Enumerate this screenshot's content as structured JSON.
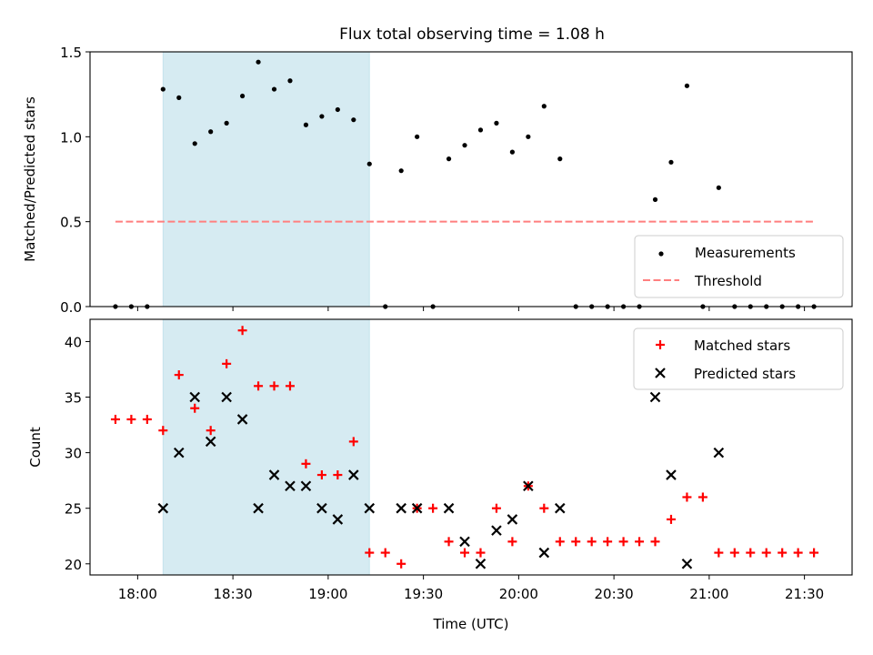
{
  "figure": {
    "title": "Flux total observing time = 1.08 h"
  },
  "chart_data": [
    {
      "type": "scatter",
      "ylabel": "Matched/Predicted stars",
      "xlabel": "",
      "x_unit": "minutes since 00:00 UTC",
      "xlim": [
        1065,
        1305
      ],
      "ylim": [
        0,
        1.5
      ],
      "yticks": [
        0,
        0.5,
        1.0,
        1.5
      ],
      "ytick_labels": [
        "0.0",
        "0.5",
        "1.0",
        "1.5"
      ],
      "shaded_region": {
        "x0": 1088,
        "x1": 1153,
        "color": "#add8e6"
      },
      "legend": {
        "position": "lower-right",
        "entries": [
          "Measurements",
          "Threshold"
        ]
      },
      "series": [
        {
          "name": "Measurements",
          "color": "#000000",
          "marker": "dot",
          "points": [
            [
              1073,
              0
            ],
            [
              1078,
              0
            ],
            [
              1083,
              0
            ],
            [
              1088,
              1.28
            ],
            [
              1093,
              1.23
            ],
            [
              1098,
              0.96
            ],
            [
              1103,
              1.03
            ],
            [
              1108,
              1.08
            ],
            [
              1113,
              1.24
            ],
            [
              1118,
              1.44
            ],
            [
              1123,
              1.28
            ],
            [
              1128,
              1.33
            ],
            [
              1133,
              1.07
            ],
            [
              1138,
              1.12
            ],
            [
              1143,
              1.16
            ],
            [
              1148,
              1.1
            ],
            [
              1153,
              0.84
            ],
            [
              1158,
              0.0
            ],
            [
              1163,
              0.8
            ],
            [
              1168,
              1.0
            ],
            [
              1173,
              0.0
            ],
            [
              1178,
              0.87
            ],
            [
              1183,
              0.95
            ],
            [
              1188,
              1.04
            ],
            [
              1193,
              1.08
            ],
            [
              1198,
              0.91
            ],
            [
              1203,
              1.0
            ],
            [
              1208,
              1.18
            ],
            [
              1213,
              0.87
            ],
            [
              1218,
              0
            ],
            [
              1223,
              0
            ],
            [
              1228,
              0
            ],
            [
              1233,
              0
            ],
            [
              1238,
              0
            ],
            [
              1243,
              0.63
            ],
            [
              1248,
              0.85
            ],
            [
              1253,
              1.3
            ],
            [
              1258,
              0
            ],
            [
              1263,
              0.7
            ],
            [
              1268,
              0
            ],
            [
              1273,
              0
            ],
            [
              1278,
              0
            ],
            [
              1283,
              0
            ],
            [
              1288,
              0
            ],
            [
              1293,
              0
            ]
          ]
        },
        {
          "name": "Threshold",
          "color": "#ff7f7f",
          "style": "dashed",
          "points": [
            [
              1073,
              0.5
            ],
            [
              1293,
              0.5
            ]
          ]
        }
      ]
    },
    {
      "type": "scatter",
      "ylabel": "Count",
      "xlabel": "Time (UTC)",
      "x_unit": "minutes since 00:00 UTC",
      "xlim": [
        1065,
        1305
      ],
      "ylim": [
        19,
        42
      ],
      "yticks": [
        20,
        25,
        30,
        35,
        40
      ],
      "ytick_labels": [
        "20",
        "25",
        "30",
        "35",
        "40"
      ],
      "xticks": [
        1080,
        1110,
        1140,
        1170,
        1200,
        1230,
        1260,
        1290
      ],
      "xtick_labels": [
        "18:00",
        "18:30",
        "19:00",
        "19:30",
        "20:00",
        "20:30",
        "21:00",
        "21:30"
      ],
      "shaded_region": {
        "x0": 1088,
        "x1": 1153,
        "color": "#add8e6"
      },
      "legend": {
        "position": "top-right",
        "entries": [
          "Matched stars",
          "Predicted stars"
        ]
      },
      "series": [
        {
          "name": "Matched stars",
          "color": "#ff0000",
          "marker": "plus",
          "points": [
            [
              1073,
              33
            ],
            [
              1078,
              33
            ],
            [
              1083,
              33
            ],
            [
              1088,
              32
            ],
            [
              1093,
              37
            ],
            [
              1098,
              34
            ],
            [
              1103,
              32
            ],
            [
              1108,
              38
            ],
            [
              1113,
              41
            ],
            [
              1118,
              36
            ],
            [
              1123,
              36
            ],
            [
              1128,
              36
            ],
            [
              1133,
              29
            ],
            [
              1138,
              28
            ],
            [
              1143,
              28
            ],
            [
              1148,
              31
            ],
            [
              1153,
              21
            ],
            [
              1158,
              21
            ],
            [
              1163,
              20
            ],
            [
              1168,
              25
            ],
            [
              1173,
              25
            ],
            [
              1178,
              22
            ],
            [
              1183,
              21
            ],
            [
              1188,
              21
            ],
            [
              1193,
              25
            ],
            [
              1198,
              22
            ],
            [
              1203,
              27
            ],
            [
              1208,
              25
            ],
            [
              1213,
              22
            ],
            [
              1218,
              22
            ],
            [
              1223,
              22
            ],
            [
              1228,
              22
            ],
            [
              1233,
              22
            ],
            [
              1238,
              22
            ],
            [
              1243,
              22
            ],
            [
              1248,
              24
            ],
            [
              1253,
              26
            ],
            [
              1258,
              26
            ],
            [
              1263,
              21
            ],
            [
              1268,
              21
            ],
            [
              1273,
              21
            ],
            [
              1278,
              21
            ],
            [
              1283,
              21
            ],
            [
              1288,
              21
            ],
            [
              1293,
              21
            ]
          ]
        },
        {
          "name": "Predicted stars",
          "color": "#000000",
          "marker": "cross",
          "points": [
            [
              1088,
              25
            ],
            [
              1093,
              30
            ],
            [
              1098,
              35
            ],
            [
              1103,
              31
            ],
            [
              1108,
              35
            ],
            [
              1113,
              33
            ],
            [
              1118,
              25
            ],
            [
              1123,
              28
            ],
            [
              1128,
              27
            ],
            [
              1133,
              27
            ],
            [
              1138,
              25
            ],
            [
              1143,
              24
            ],
            [
              1148,
              28
            ],
            [
              1153,
              25
            ],
            [
              1163,
              25
            ],
            [
              1168,
              25
            ],
            [
              1178,
              25
            ],
            [
              1183,
              22
            ],
            [
              1188,
              20
            ],
            [
              1193,
              23
            ],
            [
              1198,
              24
            ],
            [
              1203,
              27
            ],
            [
              1208,
              21
            ],
            [
              1213,
              25
            ],
            [
              1243,
              35
            ],
            [
              1248,
              28
            ],
            [
              1253,
              20
            ],
            [
              1263,
              30
            ]
          ]
        }
      ]
    }
  ]
}
